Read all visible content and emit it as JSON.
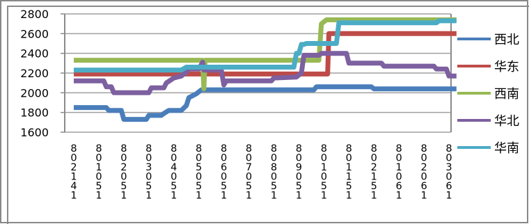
{
  "chart_data": {
    "type": "line",
    "title": "",
    "xlabel": "",
    "ylabel": "",
    "ylim": [
      1600,
      2800
    ],
    "yticks": [
      1600,
      1800,
      2000,
      2200,
      2400,
      2600,
      2800
    ],
    "grid": true,
    "legend_position": "right",
    "categories": [
      "8/2/14",
      "8/10/15",
      "8/20/15",
      "8/30/15",
      "8/40/15",
      "8/50/15",
      "8/60/15",
      "8/70/15",
      "8/80/15",
      "8/90/15",
      "8/01/15",
      "8/11/15",
      "8/21/15",
      "8/01/16",
      "8/20/16",
      "8/30/16"
    ],
    "tick_labels": [
      "8021 41",
      "801051",
      "802051",
      "803051",
      "804051",
      "805051",
      "806051",
      "807051",
      "808051",
      "809051",
      "801051",
      "801151",
      "802151",
      "801061",
      "802061",
      "803061"
    ],
    "x_positions": [
      0,
      1,
      2,
      3,
      4,
      5,
      6,
      7,
      8,
      9,
      10,
      11,
      12,
      13,
      14,
      15
    ],
    "series": [
      {
        "name": "西北",
        "color": "#4a7ebb",
        "points": [
          [
            0,
            1850
          ],
          [
            1.3,
            1850
          ],
          [
            1.4,
            1820
          ],
          [
            1.9,
            1820
          ],
          [
            2,
            1730
          ],
          [
            2.9,
            1730
          ],
          [
            3,
            1770
          ],
          [
            3.5,
            1770
          ],
          [
            3.6,
            1790
          ],
          [
            3.8,
            1820
          ],
          [
            4.3,
            1820
          ],
          [
            4.5,
            1870
          ],
          [
            4.6,
            1950
          ],
          [
            4.9,
            1990
          ],
          [
            5.1,
            2030
          ],
          [
            9.6,
            2030
          ],
          [
            9.7,
            2060
          ],
          [
            11.9,
            2060
          ],
          [
            12.0,
            2040
          ],
          [
            15.3,
            2040
          ]
        ]
      },
      {
        "name": "华东",
        "color": "#be4b48",
        "points": [
          [
            0,
            2190
          ],
          [
            10.15,
            2190
          ],
          [
            10.2,
            2600
          ],
          [
            15.3,
            2600
          ]
        ]
      },
      {
        "name": "西南",
        "color": "#98b954",
        "points": [
          [
            0,
            2330
          ],
          [
            5.15,
            2330
          ],
          [
            5.2,
            2040
          ],
          [
            5.25,
            2330
          ],
          [
            9.8,
            2330
          ],
          [
            9.9,
            2700
          ],
          [
            10.1,
            2740
          ],
          [
            15.3,
            2740
          ]
        ]
      },
      {
        "name": "华北",
        "color": "#7d60a0",
        "points": [
          [
            0,
            2120
          ],
          [
            1.2,
            2120
          ],
          [
            1.3,
            2060
          ],
          [
            1.5,
            2060
          ],
          [
            1.6,
            2000
          ],
          [
            3.0,
            2000
          ],
          [
            3.1,
            2050
          ],
          [
            3.6,
            2050
          ],
          [
            3.7,
            2100
          ],
          [
            4.0,
            2150
          ],
          [
            4.3,
            2170
          ],
          [
            4.5,
            2210
          ],
          [
            4.6,
            2240
          ],
          [
            5.0,
            2240
          ],
          [
            5.15,
            2310
          ],
          [
            5.2,
            2230
          ],
          [
            5.9,
            2230
          ],
          [
            6.0,
            2080
          ],
          [
            6.1,
            2120
          ],
          [
            7.9,
            2120
          ],
          [
            8.0,
            2150
          ],
          [
            8.9,
            2160
          ],
          [
            9.1,
            2200
          ],
          [
            9.2,
            2380
          ],
          [
            9.8,
            2380
          ],
          [
            9.9,
            2400
          ],
          [
            10.9,
            2400
          ],
          [
            11.0,
            2300
          ],
          [
            12.3,
            2300
          ],
          [
            12.4,
            2270
          ],
          [
            14.4,
            2270
          ],
          [
            14.5,
            2240
          ],
          [
            14.9,
            2240
          ],
          [
            15.0,
            2170
          ],
          [
            15.3,
            2170
          ]
        ]
      },
      {
        "name": "华南",
        "color": "#4bacc6",
        "points": [
          [
            0,
            2230
          ],
          [
            4.3,
            2230
          ],
          [
            4.5,
            2260
          ],
          [
            8.8,
            2260
          ],
          [
            8.9,
            2400
          ],
          [
            9.0,
            2400
          ],
          [
            9.1,
            2490
          ],
          [
            9.2,
            2490
          ],
          [
            9.3,
            2500
          ],
          [
            10.5,
            2500
          ],
          [
            10.6,
            2710
          ],
          [
            14.5,
            2710
          ],
          [
            14.6,
            2730
          ],
          [
            15.3,
            2730
          ]
        ]
      }
    ]
  }
}
